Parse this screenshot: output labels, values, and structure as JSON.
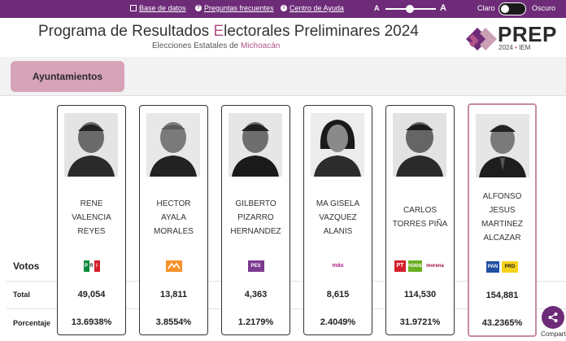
{
  "topbar": {
    "links": [
      "Base de datos",
      "Preguntas frecuentes",
      "Centro de Ayuda"
    ],
    "font_small": "A",
    "font_large": "A",
    "mode_light": "Claro",
    "mode_dark": "Oscuro",
    "bg_color": "#6d2b78"
  },
  "header": {
    "title_part1": "Programa de Resultados ",
    "title_highlight": "E",
    "title_part2": "lectorales Preliminares 2024",
    "subtitle_prefix": "Elecciones Estatales de ",
    "subtitle_state": "Michoacán",
    "logo_text": "PREP",
    "logo_year": "2024",
    "logo_org": "IEM",
    "accent": "#b25589"
  },
  "tabs": [
    {
      "label": "Ayuntamientos",
      "active": true
    }
  ],
  "rows": {
    "votos": "Votos",
    "total": "Total",
    "porcentaje": "Porcentaje"
  },
  "candidates": [
    {
      "name": [
        "RENE",
        "VALENCIA",
        "REYES"
      ],
      "party": "PRI",
      "total": "49,054",
      "percent": "13.6938%",
      "winner": false
    },
    {
      "name": [
        "HECTOR",
        "AYALA",
        "MORALES"
      ],
      "party": "MC",
      "total": "13,811",
      "percent": "3.8554%",
      "winner": false
    },
    {
      "name": [
        "GILBERTO",
        "PIZARRO",
        "HERNANDEZ"
      ],
      "party": "PES",
      "total": "4,363",
      "percent": "1.2179%",
      "winner": false
    },
    {
      "name": [
        "MA GISELA",
        "VAZQUEZ",
        "ALANIS"
      ],
      "party": "MÁS",
      "total": "8,615",
      "percent": "2.4049%",
      "winner": false
    },
    {
      "name": [
        "CARLOS",
        "TORRES PIÑA"
      ],
      "party": "PT-PVEM-MORENA",
      "total": "114,530",
      "percent": "31.9721%",
      "winner": false
    },
    {
      "name": [
        "ALFONSO",
        "JESUS",
        "MARTINEZ",
        "ALCAZAR"
      ],
      "party": "PAN-PRD",
      "total": "154,881",
      "percent": "43.2365%",
      "winner": true
    }
  ],
  "party_logos": {
    "pri": [
      "P",
      "R",
      "I"
    ],
    "pes": "PES",
    "mas": "más",
    "pt": "PT",
    "verde": "VERDE",
    "morena": "morena",
    "pan": "PAN",
    "prd": "PRD"
  },
  "share_label": "Compartir"
}
